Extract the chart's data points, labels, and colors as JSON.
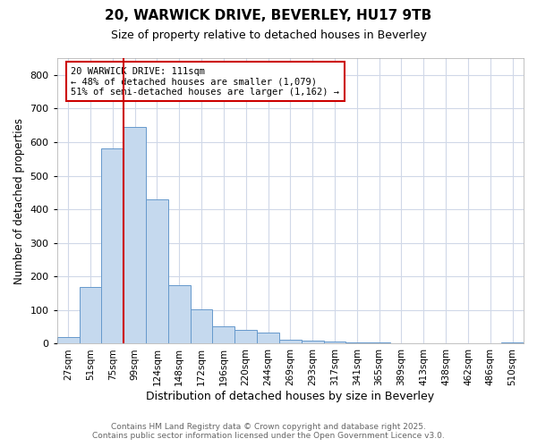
{
  "title_line1": "20, WARWICK DRIVE, BEVERLEY, HU17 9TB",
  "title_line2": "Size of property relative to detached houses in Beverley",
  "xlabel": "Distribution of detached houses by size in Beverley",
  "ylabel": "Number of detached properties",
  "categories": [
    "27sqm",
    "51sqm",
    "75sqm",
    "99sqm",
    "124sqm",
    "148sqm",
    "172sqm",
    "196sqm",
    "220sqm",
    "244sqm",
    "269sqm",
    "293sqm",
    "317sqm",
    "341sqm",
    "365sqm",
    "389sqm",
    "413sqm",
    "438sqm",
    "462sqm",
    "486sqm",
    "510sqm"
  ],
  "values": [
    20,
    170,
    580,
    645,
    430,
    175,
    102,
    52,
    40,
    33,
    12,
    8,
    6,
    4,
    4,
    2,
    1,
    1,
    1,
    1,
    4
  ],
  "bar_color": "#c5d9ee",
  "bar_edge_color": "#6699cc",
  "red_line_x": 3.0,
  "red_line_color": "#cc0000",
  "annotation_title": "20 WARWICK DRIVE: 111sqm",
  "annotation_line1": "← 48% of detached houses are smaller (1,079)",
  "annotation_line2": "51% of semi-detached houses are larger (1,162) →",
  "annotation_box_color": "#cc0000",
  "ylim": [
    0,
    850
  ],
  "yticks": [
    0,
    100,
    200,
    300,
    400,
    500,
    600,
    700,
    800
  ],
  "footer_line1": "Contains HM Land Registry data © Crown copyright and database right 2025.",
  "footer_line2": "Contains public sector information licensed under the Open Government Licence v3.0.",
  "bg_color": "#ffffff",
  "plot_bg_color": "#ffffff",
  "grid_color": "#d0d8e8"
}
